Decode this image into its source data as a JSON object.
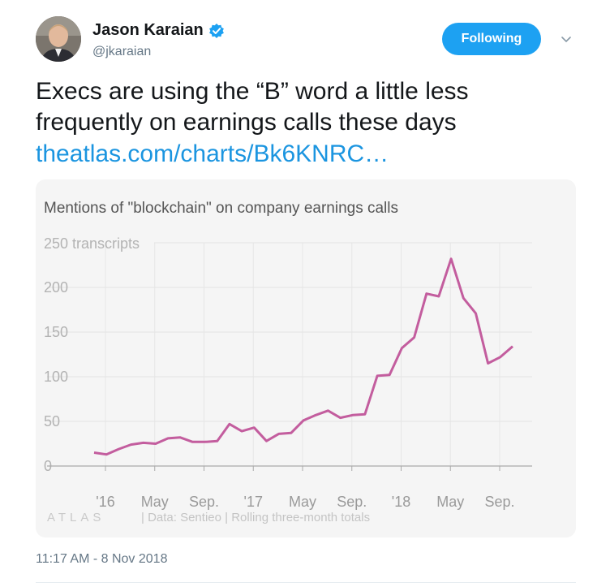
{
  "tweet": {
    "author_name": "Jason Karaian",
    "author_handle": "@jkaraian",
    "follow_label": "Following",
    "text": "Execs are using the “B” word a little less frequently on earnings calls these days",
    "link_text": "theatlas.com/charts/Bk6KNRC…",
    "timestamp": "11:17 AM - 8 Nov 2018"
  },
  "colors": {
    "accent": "#1da1f2",
    "link": "#1b95e0",
    "series": "#c35d9e"
  },
  "icons": [
    "verified-badge-icon",
    "chevron-down-icon"
  ],
  "chart_data": {
    "type": "line",
    "title": "Mentions of \"blockchain\" on company earnings calls",
    "y_unit_label": "250 transcripts",
    "y_ticks": [
      "0",
      "50",
      "100",
      "150",
      "200"
    ],
    "x_tick_labels": [
      "'16",
      "May",
      "Sep.",
      "'17",
      "May",
      "Sep.",
      "'18",
      "May",
      "Sep."
    ],
    "ylim": [
      0,
      250
    ],
    "grid": true,
    "source": "| Data: Sentieo | Rolling three-month totals",
    "brand": "ATLAS",
    "series": [
      {
        "values": [
          15,
          13,
          19,
          24,
          26,
          25,
          31,
          32,
          27,
          27,
          28,
          47,
          39,
          43,
          28,
          36,
          37,
          51,
          57,
          62,
          54,
          57,
          58,
          101,
          102,
          132,
          144,
          193,
          190,
          232,
          188,
          171,
          115,
          122,
          134
        ]
      }
    ]
  }
}
